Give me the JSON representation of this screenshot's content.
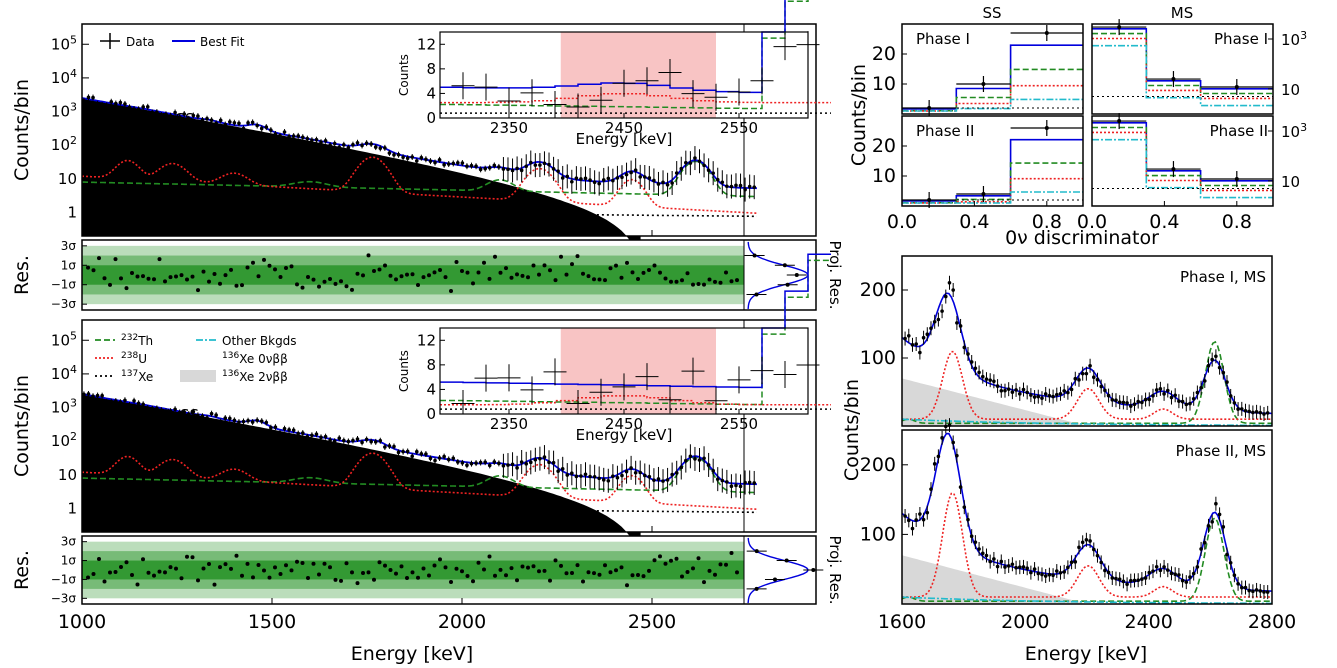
{
  "figure": {
    "xlabel_main": "Energy [keV]",
    "xlabel_right": "Energy [keV]",
    "discriminator_label": "0ν discriminator",
    "ss_header": "SS",
    "ms_header": "MS",
    "colors": {
      "data": "#000000",
      "fit": "#0000dd",
      "th": "#228b22",
      "u": "#ee2222",
      "xe137": "#000000",
      "other": "#22bbcc",
      "xe0v": "#cc00cc",
      "xe2v": "#d8d8d8",
      "roi": "#f8c4c4",
      "res1": "#339933",
      "res2": "#77bb77",
      "res3": "#bbddbb"
    }
  },
  "legend": {
    "data": "Data",
    "fit": "Best Fit",
    "th": "232Th",
    "u": "238U",
    "xe137": "137Xe",
    "other": "Other Bkgds",
    "xe0v": "136Xe 0νββ",
    "xe2v": "136Xe 2νββ"
  },
  "labels": {
    "phase1_ss": "Phase I, SS",
    "phase2_ss": "Phase II, SS",
    "phase1_ms": "Phase I, MS",
    "phase2_ms": "Phase II, MS",
    "phase1": "Phase I",
    "phase2": "Phase II",
    "counts_bin": "Counts/bin",
    "res": "Res.",
    "proj_res": "Proj. Res.",
    "inset_ylabel": "Counts",
    "inset_xlabel": "Energy [keV]"
  },
  "chart_data": [
    {
      "id": "ss-spectrum-phase1",
      "type": "line",
      "x_range": [
        1000,
        2800
      ],
      "y_scale": "log",
      "y_range": [
        0.2,
        400000
      ],
      "yticks": [
        "1",
        "10",
        "10^2",
        "10^3",
        "10^4",
        "10^5"
      ],
      "xticks": [
        "1000",
        "1500",
        "2000",
        "2500"
      ],
      "ylabel": "Counts/bin",
      "xlabel": "Energy [keV]"
    },
    {
      "id": "ss-spectrum-phase2",
      "type": "line",
      "x_range": [
        1000,
        2800
      ],
      "y_scale": "log",
      "y_range": [
        0.2,
        400000
      ],
      "yticks": [
        "1",
        "10",
        "10^2",
        "10^3",
        "10^4",
        "10^5"
      ],
      "xticks": [
        "1000",
        "1500",
        "2000",
        "2500"
      ],
      "ylabel": "Counts/bin",
      "xlabel": "Energy [keV]"
    },
    {
      "id": "roi-inset",
      "type": "line",
      "x_range": [
        2290,
        2610
      ],
      "y_range": [
        0,
        14
      ],
      "yticks": [
        "0",
        "4",
        "8",
        "12"
      ],
      "xticks": [
        "2350",
        "2450",
        "2550"
      ],
      "roi": [
        2395,
        2530
      ],
      "ylabel": "Counts",
      "xlabel": "Energy [keV]"
    },
    {
      "id": "residuals",
      "type": "scatter",
      "yticks": [
        "3σ",
        "1σ",
        "−1σ",
        "−3σ"
      ],
      "bands_sigma": [
        1,
        2,
        3
      ]
    },
    {
      "id": "discriminator",
      "type": "bar",
      "x_range": [
        0,
        1
      ],
      "xticks": [
        "0.0",
        "0.4",
        "0.8"
      ],
      "ss_yticks": [
        "10",
        "20"
      ],
      "ms_yticks": [
        "10",
        "10^3"
      ],
      "bin_edges": [
        0,
        0.3,
        0.6,
        1.0
      ],
      "ss_phase1_data": [
        2,
        10,
        27
      ],
      "ss_phase2_data": [
        2,
        4,
        26
      ],
      "ms_phase1_data": [
        3000,
        25,
        12
      ],
      "ms_phase2_data": [
        2500,
        30,
        12
      ]
    },
    {
      "id": "ms-spectrum",
      "type": "line",
      "x_range": [
        1600,
        2800
      ],
      "y_range": [
        0,
        250
      ],
      "yticks": [
        "100",
        "200"
      ],
      "xticks": [
        "1600",
        "2000",
        "2400",
        "2800"
      ],
      "ylabel": "Counts/bin",
      "xlabel": "Energy [keV]"
    }
  ]
}
